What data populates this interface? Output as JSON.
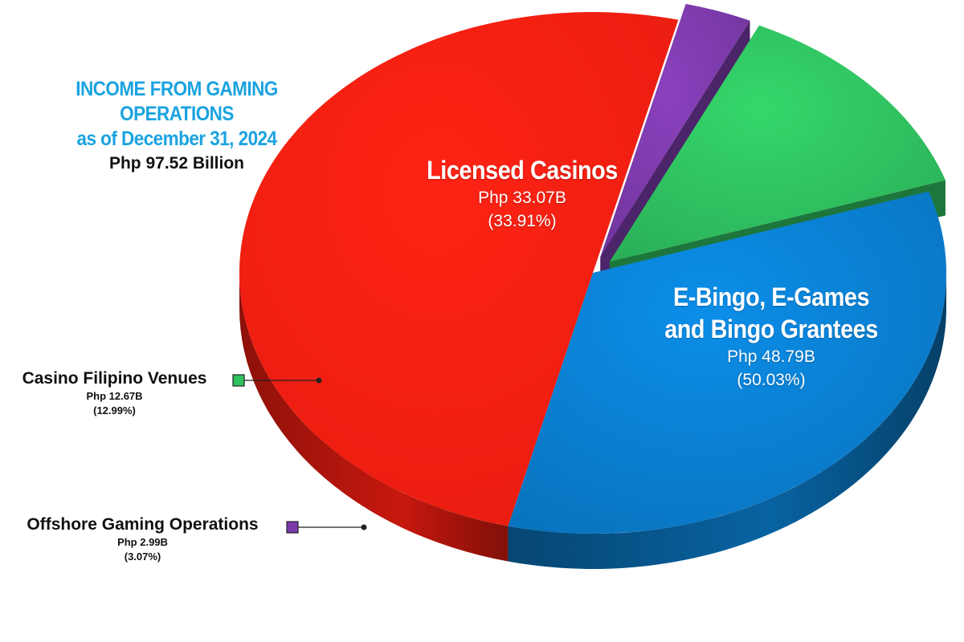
{
  "header": {
    "title_line1": "INCOME FROM GAMING OPERATIONS",
    "title_line2": "as of December 31, 2024",
    "total": "Php 97.52 Billion"
  },
  "colors": {
    "title": "#1aa3e0",
    "licensed_casinos": "#0a7fd0",
    "ebingo": "#ff1f12",
    "casino_filipino": "#2fc060",
    "offshore": "#7b3aaa"
  },
  "chart_data": {
    "type": "pie",
    "style": "3d-exploded",
    "title": "INCOME FROM GAMING OPERATIONS as of December 31, 2024",
    "subtitle": "Php 97.52 Billion",
    "unit": "Php Billion",
    "slices": [
      {
        "label": "Licensed Casinos",
        "value": 33.07,
        "amount_text": "Php 33.07B",
        "percent": 33.91,
        "percent_text": "(33.91%)",
        "color": "#0a7fd0",
        "exploded": false
      },
      {
        "label_line1": "E-Bingo, E-Games",
        "label_line2": "and Bingo Grantees",
        "label": "E-Bingo, E-Games and Bingo Grantees",
        "value": 48.79,
        "amount_text": "Php 48.79B",
        "percent": 50.03,
        "percent_text": "(50.03%)",
        "color": "#ff1f12",
        "exploded": false
      },
      {
        "label": "Offshore Gaming Operations",
        "value": 2.99,
        "amount_text": "Php 2.99B",
        "percent": 3.07,
        "percent_text": "(3.07%)",
        "color": "#7b3aaa",
        "exploded": true
      },
      {
        "label": "Casino Filipino Venues",
        "value": 12.67,
        "amount_text": "Php 12.67B",
        "percent": 12.99,
        "percent_text": "(12.99%)",
        "color": "#2fc060",
        "exploded": true
      }
    ]
  }
}
